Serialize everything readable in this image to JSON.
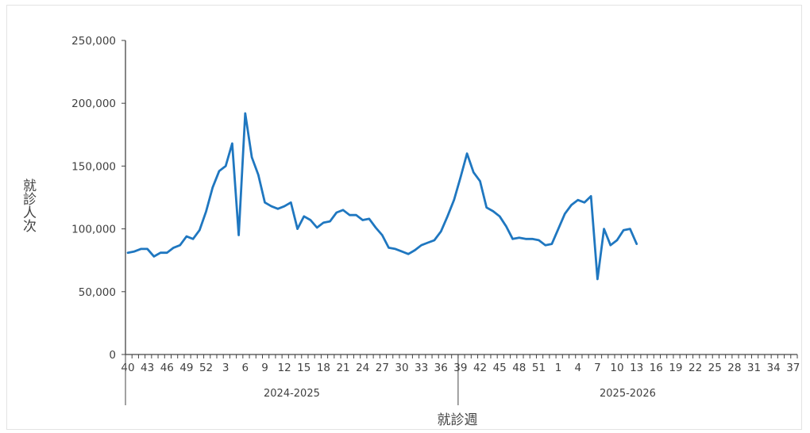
{
  "chart_data": {
    "type": "line",
    "xlabel": "就診週",
    "ylabel": "就診人次",
    "ylim": [
      0,
      250000
    ],
    "yticks": [
      "0",
      "50,000",
      "100,000",
      "150,000",
      "200,000",
      "250,000"
    ],
    "grid": false,
    "legend": "none",
    "line_color": "#1f77c0",
    "x_tick_labels": [
      "40",
      "43",
      "46",
      "49",
      "52",
      "3",
      "6",
      "9",
      "12",
      "15",
      "18",
      "21",
      "24",
      "27",
      "30",
      "33",
      "36",
      "39",
      "42",
      "45",
      "48",
      "51",
      "1",
      "4",
      "7",
      "10",
      "13",
      "16",
      "19",
      "22",
      "25",
      "28",
      "31",
      "34",
      "37"
    ],
    "seasons": [
      {
        "label": "2024-2025",
        "weeks": [
          "40",
          "41",
          "42",
          "43",
          "44",
          "45",
          "46",
          "47",
          "48",
          "49",
          "50",
          "51",
          "52",
          "1",
          "2",
          "3",
          "4",
          "5",
          "6",
          "7",
          "8",
          "9",
          "10",
          "11",
          "12",
          "13",
          "14",
          "15",
          "16",
          "17",
          "18",
          "19",
          "20",
          "21",
          "22",
          "23",
          "24",
          "25",
          "26",
          "27",
          "28",
          "29",
          "30",
          "31",
          "32",
          "33",
          "34",
          "35",
          "36",
          "37",
          "38"
        ]
      },
      {
        "label": "2025-2026",
        "weeks": [
          "39",
          "40",
          "41",
          "42",
          "43",
          "44",
          "45",
          "46",
          "47",
          "48",
          "49",
          "50",
          "51",
          "52",
          "1",
          "2",
          "3",
          "4",
          "5",
          "6",
          "7",
          "8",
          "9",
          "10",
          "11",
          "12",
          "13",
          "14",
          "15",
          "16",
          "17",
          "18",
          "19",
          "20",
          "21",
          "22",
          "23",
          "24",
          "25",
          "26",
          "27",
          "28",
          "29",
          "30",
          "31",
          "32",
          "33",
          "34",
          "35",
          "36",
          "37",
          "38"
        ]
      }
    ],
    "series": [
      {
        "values": [
          81000,
          82000,
          84000,
          84000,
          78000,
          81000,
          81000,
          85000,
          87000,
          94000,
          92000,
          99000,
          114000,
          133000,
          146000,
          150000,
          168000,
          95000,
          192000,
          157000,
          143000,
          121000,
          118000,
          116000,
          118000,
          121000,
          100000,
          110000,
          107000,
          101000,
          105000,
          106000,
          113000,
          115000,
          111000,
          111000,
          107000,
          108000,
          101000,
          95000,
          85000,
          84000,
          82000,
          80000,
          83000,
          87000,
          89000,
          91000,
          98000,
          110000,
          123000,
          141000,
          160000,
          145000,
          138000,
          117000,
          114000,
          110000,
          102000,
          92000,
          93000,
          92000,
          92000,
          91000,
          87000,
          88000,
          100000,
          112000,
          119000,
          123000,
          121000,
          126000,
          60000,
          100000,
          87000,
          91000,
          99000,
          100000,
          88000
        ]
      }
    ]
  }
}
